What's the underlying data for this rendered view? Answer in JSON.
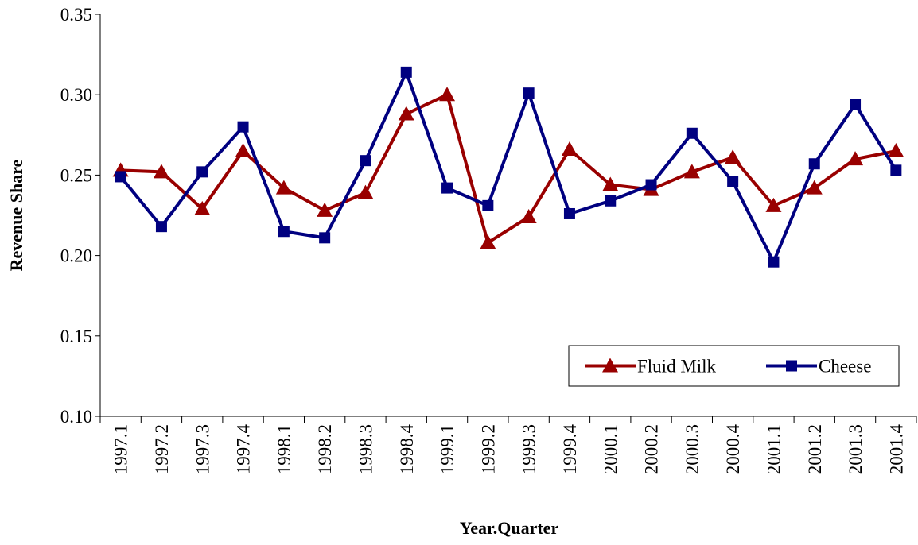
{
  "chart_data": {
    "type": "line",
    "x_label": "Year.Quarter",
    "y_label": "Revenue Share",
    "categories": [
      "1997.1",
      "1997.2",
      "1997.3",
      "1997.4",
      "1998.1",
      "1998.2",
      "1998.3",
      "1998.4",
      "1999.1",
      "1999.2",
      "1999.3",
      "1999.4",
      "2000.1",
      "2000.2",
      "2000.3",
      "2000.4",
      "2001.1",
      "2001.2",
      "2001.3",
      "2001.4"
    ],
    "series": [
      {
        "name": "Fluid Milk",
        "color": "#990000",
        "marker": "triangle",
        "values": [
          0.253,
          0.252,
          0.229,
          0.265,
          0.242,
          0.228,
          0.239,
          0.288,
          0.3,
          0.208,
          0.224,
          0.266,
          0.244,
          0.241,
          0.252,
          0.261,
          0.231,
          0.242,
          0.26,
          0.265
        ]
      },
      {
        "name": "Cheese",
        "color": "#000080",
        "marker": "square",
        "values": [
          0.249,
          0.218,
          0.252,
          0.28,
          0.215,
          0.211,
          0.259,
          0.314,
          0.242,
          0.231,
          0.301,
          0.226,
          0.234,
          0.244,
          0.276,
          0.246,
          0.196,
          0.257,
          0.294,
          0.253
        ]
      }
    ],
    "ylim": [
      0.1,
      0.35
    ],
    "yticks": [
      {
        "value": 0.1,
        "label": "0.10"
      },
      0.15,
      {
        "value": 0.2,
        "label": "0.20"
      },
      0.25,
      {
        "value": 0.3,
        "label": "0.30"
      },
      0.35
    ],
    "legend": "lower right"
  }
}
